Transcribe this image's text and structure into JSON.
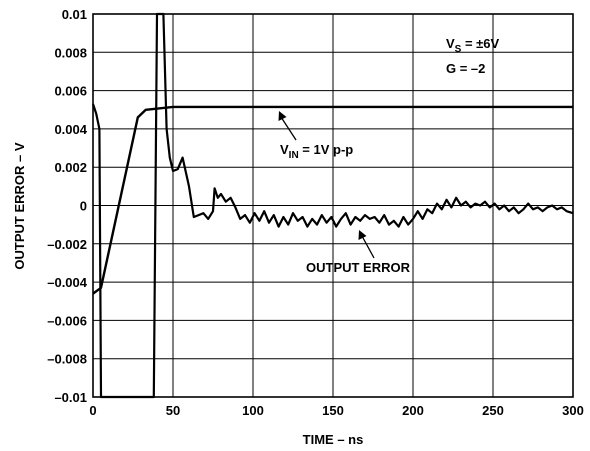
{
  "chart_data": {
    "type": "line",
    "xlabel": "TIME – ns",
    "ylabel": "OUTPUT ERROR – V",
    "xlim": [
      0,
      300
    ],
    "ylim": [
      -0.01,
      0.01
    ],
    "x_ticks": [
      "0",
      "50",
      "100",
      "150",
      "200",
      "250",
      "300"
    ],
    "y_ticks": [
      "0.01",
      "0.008",
      "0.006",
      "0.004",
      "0.002",
      "0",
      "–0.002",
      "–0.004",
      "–0.006",
      "–0.008",
      "–0.01"
    ],
    "grid": true,
    "conditions": {
      "vs": {
        "main": "V",
        "sub": "S",
        "rest": " = ±6V"
      },
      "gain": "G = –2"
    },
    "series": [
      {
        "name": "V_IN = 1V p-p",
        "label": {
          "main": "V",
          "sub": "IN",
          "rest": " = 1V p-p"
        },
        "values": [
          [
            0,
            -0.0046
          ],
          [
            5,
            -0.0043
          ],
          [
            28,
            0.0046
          ],
          [
            33,
            0.005
          ],
          [
            50,
            0.00515
          ],
          [
            300,
            0.00515
          ]
        ]
      },
      {
        "name": "OUTPUT ERROR",
        "label": "OUTPUT ERROR",
        "values": [
          [
            0,
            0.0053
          ],
          [
            2,
            0.0048
          ],
          [
            4,
            0.004
          ],
          [
            5,
            -0.01
          ],
          [
            38,
            -0.01
          ],
          [
            40,
            0.01
          ],
          [
            44,
            0.01
          ],
          [
            46,
            0.004
          ],
          [
            48,
            0.0025
          ],
          [
            50,
            0.0018
          ],
          [
            53,
            0.0019
          ],
          [
            56,
            0.0025
          ],
          [
            60,
            0.001
          ],
          [
            63,
            -0.0006
          ],
          [
            66,
            -0.0005
          ],
          [
            69,
            -0.0004
          ],
          [
            72,
            -0.0007
          ],
          [
            75,
            -0.0003
          ],
          [
            76,
            0.0009
          ],
          [
            78,
            0.0004
          ],
          [
            80,
            0.0006
          ],
          [
            83,
            0.0002
          ],
          [
            86,
            0.0004
          ],
          [
            89,
            -0.0001
          ],
          [
            92,
            -0.0007
          ],
          [
            95,
            -0.0005
          ],
          [
            98,
            -0.0009
          ],
          [
            101,
            -0.0004
          ],
          [
            104,
            -0.0008
          ],
          [
            107,
            -0.0003
          ],
          [
            110,
            -0.0009
          ],
          [
            113,
            -0.0005
          ],
          [
            116,
            -0.0011
          ],
          [
            119,
            -0.0006
          ],
          [
            122,
            -0.001
          ],
          [
            125,
            -0.0004
          ],
          [
            128,
            -0.0008
          ],
          [
            131,
            -0.0006
          ],
          [
            134,
            -0.0011
          ],
          [
            137,
            -0.0007
          ],
          [
            140,
            -0.001
          ],
          [
            143,
            -0.0005
          ],
          [
            146,
            -0.0009
          ],
          [
            149,
            -0.0006
          ],
          [
            152,
            -0.0011
          ],
          [
            155,
            -0.0007
          ],
          [
            158,
            -0.0004
          ],
          [
            161,
            -0.001
          ],
          [
            164,
            -0.0006
          ],
          [
            167,
            -0.0008
          ],
          [
            170,
            -0.0005
          ],
          [
            173,
            -0.0007
          ],
          [
            176,
            -0.0006
          ],
          [
            179,
            -0.0009
          ],
          [
            182,
            -0.0005
          ],
          [
            185,
            -0.001
          ],
          [
            188,
            -0.0008
          ],
          [
            191,
            -0.0011
          ],
          [
            194,
            -0.0006
          ],
          [
            197,
            -0.001
          ],
          [
            200,
            -0.0007
          ],
          [
            203,
            -0.0003
          ],
          [
            206,
            -0.0007
          ],
          [
            209,
            -0.0002
          ],
          [
            212,
            -0.0004
          ],
          [
            215,
            0.0001
          ],
          [
            218,
            -0.0002
          ],
          [
            221,
            0.0003
          ],
          [
            224,
            -0.0001
          ],
          [
            227,
            0.0004
          ],
          [
            230,
            0.0
          ],
          [
            233,
            0.0002
          ],
          [
            236,
            -0.0001
          ],
          [
            239,
            0.0001
          ],
          [
            242,
            0.0
          ],
          [
            245,
            0.0002
          ],
          [
            248,
            -0.0001
          ],
          [
            251,
            0.0001
          ],
          [
            254,
            -0.0002
          ],
          [
            257,
            0.0
          ],
          [
            260,
            -0.0003
          ],
          [
            263,
            -0.0001
          ],
          [
            266,
            -0.0004
          ],
          [
            269,
            -0.0002
          ],
          [
            272,
            0.0001
          ],
          [
            275,
            -0.0002
          ],
          [
            278,
            -0.0001
          ],
          [
            281,
            -0.0003
          ],
          [
            284,
            -0.0001
          ],
          [
            287,
            0.0
          ],
          [
            290,
            -0.0002
          ],
          [
            293,
            -0.0001
          ],
          [
            296,
            -0.0003
          ],
          [
            300,
            -0.0004
          ]
        ]
      }
    ]
  }
}
